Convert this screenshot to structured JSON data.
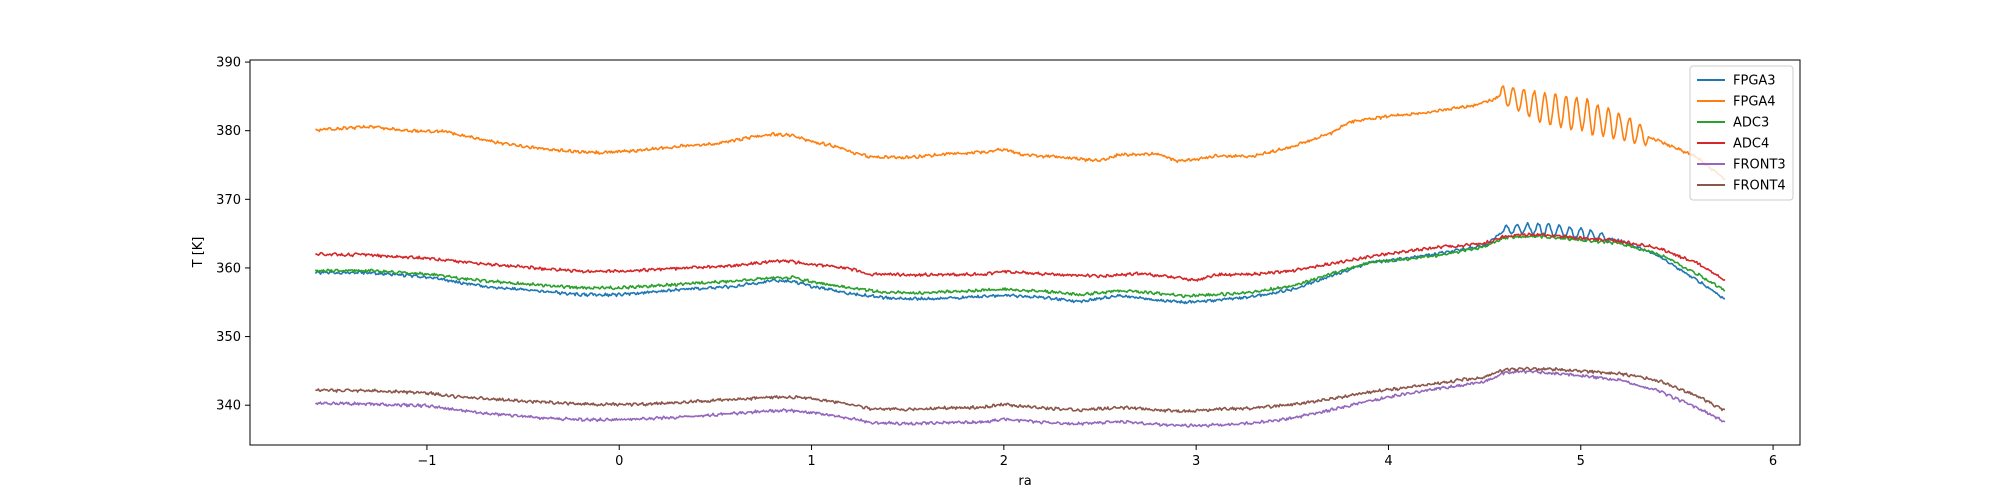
{
  "chart_data": {
    "type": "line",
    "title": "",
    "xlabel": "ra",
    "ylabel": "T [K]",
    "xlim": [
      -1.92,
      6.14
    ],
    "ylim": [
      334.2,
      390.3
    ],
    "xticks": [
      -1,
      0,
      1,
      2,
      3,
      4,
      5,
      6
    ],
    "xtick_labels": [
      "−1",
      "0",
      "1",
      "2",
      "3",
      "4",
      "5",
      "6"
    ],
    "yticks": [
      340,
      350,
      360,
      370,
      380,
      390
    ],
    "ytick_labels": [
      "340",
      "350",
      "360",
      "370",
      "380",
      "390"
    ],
    "grid": false,
    "legend_position": "top-right",
    "series": [
      {
        "name": "FPGA3",
        "color": "#1f77b4",
        "x": [
          -1.58,
          -1.3,
          -1.0,
          -0.7,
          -0.4,
          -0.2,
          0.0,
          0.2,
          0.4,
          0.6,
          0.8,
          0.9,
          1.0,
          1.2,
          1.4,
          1.6,
          1.8,
          2.0,
          2.2,
          2.4,
          2.6,
          2.8,
          2.95,
          3.1,
          3.3,
          3.5,
          3.7,
          3.9,
          4.1,
          4.3,
          4.5,
          4.6,
          4.7,
          4.8,
          5.0,
          5.2,
          5.4,
          5.6,
          5.75
        ],
        "y": [
          359.3,
          359.3,
          358.7,
          357.3,
          356.6,
          356.1,
          356.1,
          356.6,
          357.0,
          357.3,
          358.2,
          358.1,
          357.3,
          356.3,
          355.6,
          355.5,
          355.7,
          356.0,
          355.7,
          355.1,
          356.0,
          355.3,
          355.0,
          355.3,
          355.8,
          356.9,
          358.8,
          360.8,
          361.4,
          362.3,
          363.3,
          365.5,
          365.8,
          365.6,
          365.0,
          364.0,
          361.8,
          358.3,
          355.4
        ],
        "oscillation": {
          "from": 4.6,
          "to": 5.15,
          "amplitude": 0.9,
          "period": 0.055
        }
      },
      {
        "name": "FPGA4",
        "color": "#ff7f0e",
        "x": [
          -1.58,
          -1.4,
          -1.3,
          -1.1,
          -0.9,
          -0.7,
          -0.5,
          -0.3,
          -0.1,
          0.1,
          0.3,
          0.5,
          0.7,
          0.8,
          0.9,
          1.0,
          1.1,
          1.2,
          1.3,
          1.5,
          1.7,
          1.9,
          2.0,
          2.1,
          2.3,
          2.5,
          2.6,
          2.8,
          2.9,
          3.0,
          3.1,
          3.3,
          3.5,
          3.7,
          3.8,
          4.0,
          4.2,
          4.3,
          4.45,
          4.55,
          4.6,
          4.7,
          4.8,
          5.0,
          5.2,
          5.4,
          5.6,
          5.75
        ],
        "y": [
          380.1,
          380.4,
          380.6,
          380.0,
          379.9,
          378.6,
          377.7,
          377.1,
          376.8,
          377.1,
          377.7,
          378.1,
          379.1,
          379.5,
          379.3,
          378.4,
          377.9,
          376.9,
          376.2,
          376.1,
          376.6,
          376.9,
          377.3,
          376.5,
          376.1,
          375.6,
          376.5,
          376.6,
          375.6,
          375.8,
          376.3,
          376.3,
          377.7,
          379.6,
          381.3,
          382.1,
          382.6,
          383.1,
          383.7,
          384.6,
          385.2,
          384.3,
          383.3,
          382.4,
          380.6,
          378.6,
          376.2,
          372.9
        ],
        "oscillation": {
          "from": 4.58,
          "to": 5.35,
          "amplitude": 2.4,
          "period": 0.055
        }
      },
      {
        "name": "ADC3",
        "color": "#2ca02c",
        "x": [
          -1.58,
          -1.3,
          -1.0,
          -0.7,
          -0.4,
          -0.2,
          0.0,
          0.2,
          0.4,
          0.6,
          0.8,
          0.9,
          1.0,
          1.2,
          1.4,
          1.6,
          1.8,
          2.0,
          2.2,
          2.4,
          2.6,
          2.8,
          2.95,
          3.1,
          3.3,
          3.5,
          3.7,
          3.9,
          4.1,
          4.3,
          4.5,
          4.6,
          4.7,
          4.8,
          5.0,
          5.2,
          5.4,
          5.6,
          5.75
        ],
        "y": [
          359.6,
          359.6,
          359.1,
          358.1,
          357.5,
          357.1,
          357.1,
          357.4,
          357.8,
          358.1,
          358.6,
          358.6,
          358.0,
          357.1,
          356.4,
          356.4,
          356.6,
          356.9,
          356.6,
          356.1,
          356.7,
          356.3,
          355.9,
          356.1,
          356.5,
          357.4,
          359.1,
          360.8,
          361.3,
          362.0,
          363.1,
          364.4,
          364.6,
          364.6,
          364.1,
          363.6,
          362.1,
          359.2,
          356.7
        ]
      },
      {
        "name": "ADC4",
        "color": "#d62728",
        "x": [
          -1.58,
          -1.3,
          -1.0,
          -0.7,
          -0.4,
          -0.2,
          0.0,
          0.2,
          0.4,
          0.6,
          0.7,
          0.8,
          0.9,
          1.0,
          1.1,
          1.2,
          1.3,
          1.5,
          1.7,
          1.9,
          2.0,
          2.2,
          2.4,
          2.5,
          2.7,
          2.9,
          3.0,
          3.1,
          3.3,
          3.5,
          3.7,
          3.9,
          4.1,
          4.3,
          4.5,
          4.6,
          4.7,
          4.8,
          5.0,
          5.2,
          5.4,
          5.6,
          5.75
        ],
        "y": [
          362.0,
          361.9,
          361.4,
          360.6,
          359.9,
          359.5,
          359.5,
          359.8,
          360.1,
          360.3,
          360.7,
          361.0,
          360.9,
          360.5,
          360.3,
          359.9,
          359.1,
          359.0,
          359.0,
          359.1,
          359.5,
          359.1,
          358.9,
          358.8,
          359.2,
          358.6,
          358.2,
          359.0,
          359.1,
          359.6,
          360.6,
          361.6,
          362.5,
          363.1,
          363.6,
          364.6,
          364.9,
          364.8,
          364.4,
          363.9,
          362.9,
          360.8,
          358.2
        ]
      },
      {
        "name": "FRONT3",
        "color": "#9467bd",
        "x": [
          -1.58,
          -1.3,
          -1.0,
          -0.8,
          -0.6,
          -0.4,
          -0.2,
          0.0,
          0.2,
          0.4,
          0.6,
          0.8,
          0.9,
          1.0,
          1.1,
          1.2,
          1.3,
          1.5,
          1.7,
          1.9,
          2.0,
          2.2,
          2.4,
          2.6,
          2.8,
          2.95,
          3.1,
          3.3,
          3.5,
          3.7,
          3.9,
          4.1,
          4.3,
          4.5,
          4.6,
          4.7,
          4.8,
          5.0,
          5.2,
          5.4,
          5.6,
          5.75
        ],
        "y": [
          340.3,
          340.2,
          339.9,
          339.1,
          338.6,
          338.1,
          337.9,
          337.9,
          338.1,
          338.4,
          338.8,
          339.2,
          339.2,
          338.9,
          338.6,
          338.1,
          337.5,
          337.3,
          337.5,
          337.5,
          338.0,
          337.5,
          337.3,
          337.6,
          337.2,
          337.0,
          337.1,
          337.4,
          338.1,
          339.3,
          340.6,
          341.7,
          342.6,
          343.4,
          344.7,
          344.9,
          344.8,
          344.3,
          343.7,
          342.1,
          339.7,
          337.6
        ]
      },
      {
        "name": "FRONT4",
        "color": "#8c564b",
        "x": [
          -1.58,
          -1.3,
          -1.0,
          -0.85,
          -0.7,
          -0.5,
          -0.3,
          -0.1,
          0.1,
          0.3,
          0.5,
          0.7,
          0.8,
          0.9,
          1.0,
          1.1,
          1.2,
          1.3,
          1.5,
          1.7,
          1.9,
          2.0,
          2.2,
          2.4,
          2.6,
          2.8,
          2.95,
          3.1,
          3.3,
          3.5,
          3.7,
          3.9,
          4.1,
          4.3,
          4.5,
          4.6,
          4.7,
          4.8,
          5.0,
          5.2,
          5.4,
          5.6,
          5.75
        ],
        "y": [
          342.2,
          342.1,
          341.8,
          341.2,
          341.0,
          340.6,
          340.3,
          340.1,
          340.1,
          340.4,
          340.7,
          341.0,
          341.2,
          341.2,
          341.0,
          340.6,
          340.1,
          339.5,
          339.4,
          339.6,
          339.7,
          340.1,
          339.6,
          339.3,
          339.7,
          339.3,
          339.1,
          339.4,
          339.6,
          340.1,
          340.9,
          341.9,
          342.6,
          343.4,
          344.1,
          345.2,
          345.3,
          345.3,
          345.0,
          344.6,
          343.6,
          341.4,
          339.2
        ]
      }
    ]
  }
}
